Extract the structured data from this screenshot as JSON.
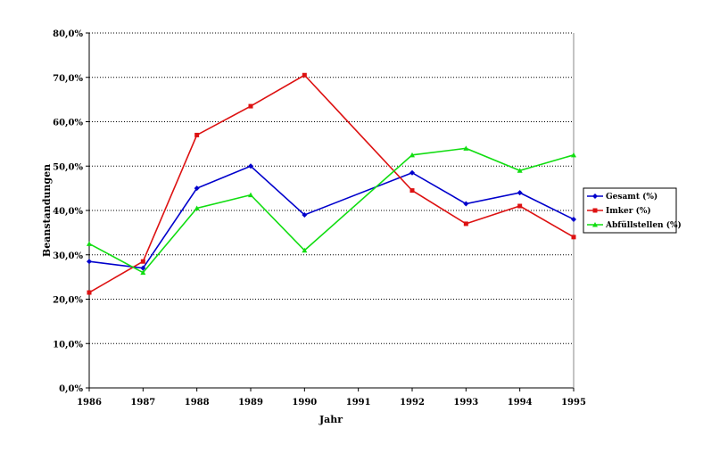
{
  "chart_data": {
    "type": "line",
    "title": "",
    "xlabel": "Jahr",
    "ylabel": "Beanstandungen",
    "x": [
      "1986",
      "1987",
      "1988",
      "1989",
      "1990",
      "1991",
      "1992",
      "1993",
      "1994",
      "1995"
    ],
    "y_ticks": [
      "0,0%",
      "10,0%",
      "20,0%",
      "30,0%",
      "40,0%",
      "50,0%",
      "60,0%",
      "70,0%",
      "80,0%"
    ],
    "ylim": [
      0,
      80
    ],
    "grid": "horizontal dotted",
    "legend_position": "right",
    "series": [
      {
        "name": "Gesamt (%)",
        "color": "#0000cc",
        "marker": "diamond",
        "values": [
          28.5,
          27,
          45,
          50,
          39,
          null,
          48.5,
          41.5,
          44,
          38
        ]
      },
      {
        "name": "Imker (%)",
        "color": "#dd1111",
        "marker": "square",
        "values": [
          21.5,
          28.5,
          57,
          63.5,
          70.5,
          null,
          44.5,
          37,
          41,
          34
        ]
      },
      {
        "name": "Abfüllstellen (%)",
        "color": "#11dd11",
        "marker": "triangle",
        "values": [
          32.5,
          26,
          40.5,
          43.5,
          31,
          null,
          52.5,
          54,
          49,
          52.5
        ]
      }
    ]
  }
}
